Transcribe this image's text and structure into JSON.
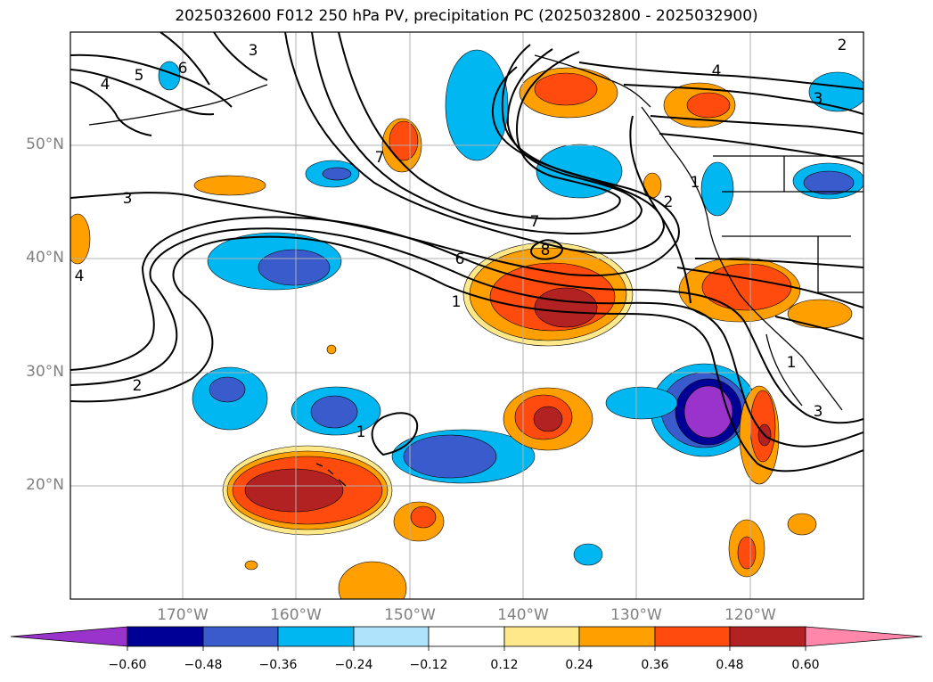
{
  "title": "2025032600 F012 250 hPa PV, precipitation PC (2025032800 - 2025032900)",
  "lon_labels": [
    "170°W",
    "160°W",
    "150°W",
    "140°W",
    "130°W",
    "120°W"
  ],
  "lat_labels": [
    "50°N",
    "40°N",
    "30°N",
    "20°N"
  ],
  "map_extent": {
    "lon": [
      -180,
      -110
    ],
    "lat": [
      10,
      60
    ]
  },
  "contour_labels": [
    "3",
    "6",
    "5",
    "4",
    "3",
    "4",
    "3",
    "7",
    "1",
    "2",
    "6",
    "8",
    "7",
    "1",
    "2",
    "4",
    "1",
    "1",
    "3",
    "2"
  ],
  "colorbar": {
    "ticks": [
      "−0.60",
      "−0.48",
      "−0.36",
      "−0.24",
      "−0.12",
      "0.12",
      "0.24",
      "0.36",
      "0.48",
      "0.60"
    ],
    "colors": [
      "#9933cc",
      "#000096",
      "#3a5bcb",
      "#00b7f2",
      "#aee3fb",
      "#ffffff",
      "#ffe88a",
      "#ff9f00",
      "#ff4b0d",
      "#b22222",
      "#ff88aa"
    ]
  }
}
